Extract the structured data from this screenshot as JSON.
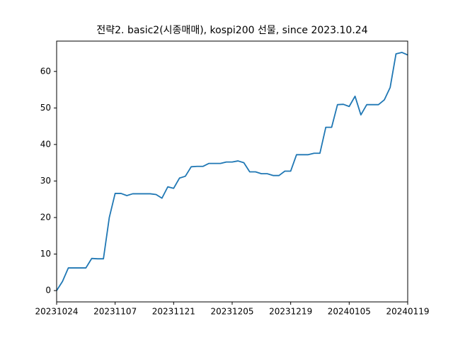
{
  "chart_data": {
    "type": "line",
    "title": "전략2. basic2(시종매매), kospi200 선물, since 2023.10.24",
    "x": [
      0,
      1,
      2,
      3,
      4,
      5,
      6,
      7,
      8,
      9,
      10,
      11,
      12,
      13,
      14,
      15,
      16,
      17,
      18,
      19,
      20,
      21,
      22,
      23,
      24,
      25,
      26,
      27,
      28,
      29,
      30,
      31,
      32,
      33,
      34,
      35,
      36,
      37,
      38,
      39,
      40,
      41,
      42,
      43,
      44,
      45,
      46,
      47,
      48,
      49,
      50,
      51,
      52,
      53,
      54,
      55,
      56,
      57,
      58,
      59,
      60
    ],
    "series": [
      {
        "color": "#1f77b4",
        "values": [
          0,
          2.5,
          6.2,
          6.2,
          6.2,
          6.2,
          8.8,
          8.7,
          8.7,
          20,
          26.6,
          26.6,
          26,
          26.5,
          26.5,
          26.5,
          26.5,
          26.3,
          25.3,
          28.4,
          28,
          30.8,
          31.3,
          33.9,
          34,
          34,
          34.8,
          34.8,
          34.8,
          35.2,
          35.2,
          35.5,
          35,
          32.5,
          32.5,
          32,
          32,
          31.5,
          31.5,
          32.7,
          32.7,
          37.2,
          37.2,
          37.2,
          37.6,
          37.6,
          44.7,
          44.7,
          50.9,
          51,
          50.4,
          53.2,
          48.1,
          50.9,
          50.9,
          50.9,
          52.2,
          55.6,
          64.8,
          65.2,
          64.5
        ]
      }
    ],
    "xlim": [
      0,
      60
    ],
    "xticks": [
      {
        "value": 0,
        "label": "20231024"
      },
      {
        "value": 10,
        "label": "20231107"
      },
      {
        "value": 20,
        "label": "20231121"
      },
      {
        "value": 30,
        "label": "20231205"
      },
      {
        "value": 40,
        "label": "20231219"
      },
      {
        "value": 50,
        "label": "20240105"
      },
      {
        "value": 60,
        "label": "20240119"
      }
    ],
    "ylim": [
      -3.1,
      68.3
    ],
    "yticks": [
      0,
      10,
      20,
      30,
      40,
      50,
      60
    ]
  }
}
